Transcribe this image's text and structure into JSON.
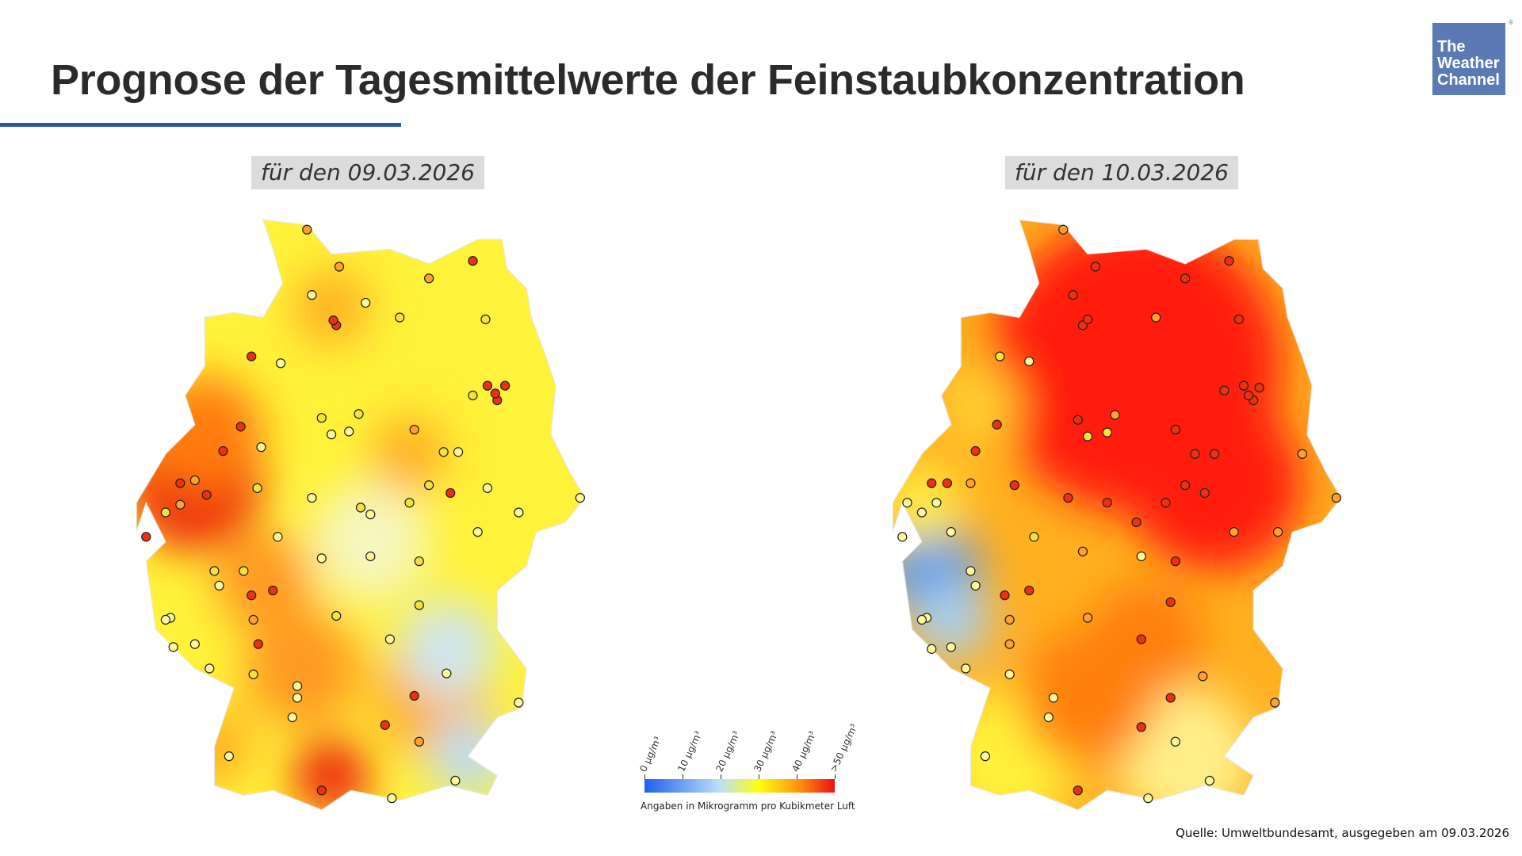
{
  "header": {
    "title": "Prognose der Tagesmittelwerte der Feinstaubkonzentration"
  },
  "logo": {
    "text": "The Weather Channel",
    "brand_color": "#5b7ab5"
  },
  "maps": [
    {
      "date_label": "für den 09.03.2026"
    },
    {
      "date_label": "für den 10.03.2026"
    }
  ],
  "legend": {
    "ticks": [
      "0 µg/m³",
      "10 µg/m³",
      "20 µg/m³",
      "30 µg/m³",
      "40 µg/m³",
      ">50 µg/m³"
    ],
    "colors": [
      "#1f5ff0",
      "#a9d3f5",
      "#fefe10",
      "#ff9a10",
      "#ee1010"
    ],
    "note": "Angaben in Mikrogramm pro Kubikmeter Luft"
  },
  "source": "Quelle: Umweltbundesamt, ausgegeben am 09.03.2026"
}
